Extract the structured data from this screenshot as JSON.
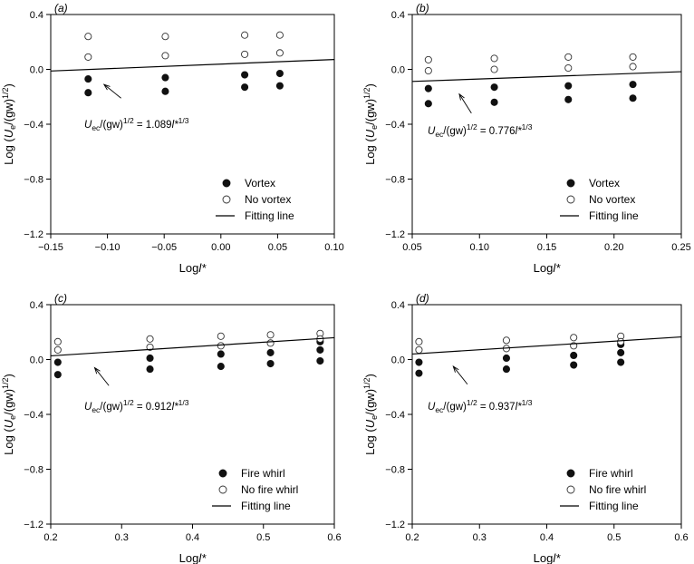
{
  "chart_data": [
    {
      "type": "scatter",
      "panel_label": "(a)",
      "xlabel": "Logl*",
      "ylabel": "Log (Ue/(gw)1/2)",
      "xlim": [
        -0.15,
        0.1
      ],
      "ylim": [
        -1.2,
        0.4
      ],
      "xticks": [
        -0.15,
        -0.1,
        -0.05,
        0.0,
        0.05,
        0.1
      ],
      "xtick_labels": [
        "−0.15",
        "−0.10",
        "−0.05",
        "0.00",
        "0.05",
        "0.10"
      ],
      "yticks": [
        -1.2,
        -0.8,
        -0.4,
        0.0,
        0.4
      ],
      "ytick_labels": [
        "−1.2",
        "−0.8",
        "−0.4",
        "0.0",
        "0.4"
      ],
      "series": [
        {
          "name": "Vortex",
          "marker": "filled-circle",
          "x": [
            -0.117,
            -0.117,
            -0.049,
            -0.049,
            0.021,
            0.021,
            0.052,
            0.052
          ],
          "y": [
            -0.07,
            -0.17,
            -0.06,
            -0.16,
            -0.04,
            -0.13,
            -0.03,
            -0.12
          ]
        },
        {
          "name": "No vortex",
          "marker": "open-circle",
          "x": [
            -0.117,
            -0.117,
            -0.049,
            -0.049,
            0.021,
            0.021,
            0.052,
            0.052
          ],
          "y": [
            0.24,
            0.09,
            0.24,
            0.1,
            0.25,
            0.11,
            0.25,
            0.12
          ]
        },
        {
          "name": "Fitting line",
          "marker": "line",
          "x": [
            -0.15,
            0.1
          ],
          "y": [
            -0.012,
            0.072
          ]
        }
      ],
      "annotation": {
        "prefix": "U",
        "sub": "ec",
        "mid": "/(gw)",
        "sup": "1/2",
        "eq": " = 1.089",
        "var": "l*",
        "exp": "1/3"
      },
      "annotation_arrow": {
        "from": [
          -0.088,
          -0.21
        ],
        "to": [
          -0.103,
          -0.11
        ]
      },
      "legend_position": "bottom-right",
      "grid": false
    },
    {
      "type": "scatter",
      "panel_label": "(b)",
      "xlabel": "Logl*",
      "ylabel": "Log (Ue/(gw)1/2)",
      "xlim": [
        0.05,
        0.25
      ],
      "ylim": [
        -1.2,
        0.4
      ],
      "xticks": [
        0.05,
        0.1,
        0.15,
        0.2,
        0.25
      ],
      "xtick_labels": [
        "0.05",
        "0.10",
        "0.15",
        "0.20",
        "0.25"
      ],
      "yticks": [
        -1.2,
        -0.8,
        -0.4,
        0.0,
        0.4
      ],
      "ytick_labels": [
        "−1.2",
        "−0.8",
        "−0.4",
        "0.0",
        "0.4"
      ],
      "series": [
        {
          "name": "Vortex",
          "marker": "filled-circle",
          "x": [
            0.062,
            0.062,
            0.111,
            0.111,
            0.166,
            0.166,
            0.214,
            0.214
          ],
          "y": [
            -0.14,
            -0.25,
            -0.13,
            -0.24,
            -0.12,
            -0.22,
            -0.11,
            -0.21
          ]
        },
        {
          "name": "No vortex",
          "marker": "open-circle",
          "x": [
            0.062,
            0.062,
            0.111,
            0.111,
            0.166,
            0.166,
            0.214,
            0.214
          ],
          "y": [
            0.07,
            -0.01,
            0.08,
            0.0,
            0.09,
            0.01,
            0.09,
            0.02
          ]
        },
        {
          "name": "Fitting line",
          "marker": "line",
          "x": [
            0.05,
            0.25
          ],
          "y": [
            -0.088,
            -0.017
          ]
        }
      ],
      "annotation": {
        "prefix": "U",
        "sub": "ec",
        "mid": "/(gw)",
        "sup": "1/2",
        "eq": " = 0.776",
        "var": "l*",
        "exp": "1/3"
      },
      "annotation_arrow": {
        "from": [
          0.094,
          -0.32
        ],
        "to": [
          0.085,
          -0.18
        ]
      },
      "legend_position": "bottom-right",
      "grid": false
    },
    {
      "type": "scatter",
      "panel_label": "(c)",
      "xlabel": "Logl*",
      "ylabel": "Log (Ue/(gw)1/2)",
      "xlim": [
        0.2,
        0.6
      ],
      "ylim": [
        -1.2,
        0.4
      ],
      "xticks": [
        0.2,
        0.3,
        0.4,
        0.5,
        0.6
      ],
      "xtick_labels": [
        "0.2",
        "0.3",
        "0.4",
        "0.5",
        "0.6"
      ],
      "yticks": [
        -1.2,
        -0.8,
        -0.4,
        0.0,
        0.4
      ],
      "ytick_labels": [
        "−1.2",
        "−0.8",
        "−0.4",
        "0.0",
        "0.4"
      ],
      "series": [
        {
          "name": "Fire whirl",
          "marker": "filled-circle",
          "x": [
            0.21,
            0.21,
            0.34,
            0.34,
            0.44,
            0.44,
            0.51,
            0.51,
            0.58,
            0.58,
            0.58
          ],
          "y": [
            -0.02,
            -0.11,
            0.01,
            -0.07,
            0.04,
            -0.05,
            0.05,
            -0.03,
            0.13,
            0.07,
            -0.01
          ]
        },
        {
          "name": "No fire whirl",
          "marker": "open-circle",
          "x": [
            0.21,
            0.21,
            0.34,
            0.34,
            0.44,
            0.44,
            0.51,
            0.51,
            0.58,
            0.58
          ],
          "y": [
            0.13,
            0.07,
            0.15,
            0.09,
            0.17,
            0.1,
            0.18,
            0.12,
            0.19,
            0.15
          ]
        },
        {
          "name": "Fitting line",
          "marker": "line",
          "x": [
            0.2,
            0.6
          ],
          "y": [
            0.027,
            0.159
          ]
        }
      ],
      "annotation": {
        "prefix": "U",
        "sub": "ec",
        "mid": "/(gw)",
        "sup": "1/2",
        "eq": " = 0.912",
        "var": "l*",
        "exp": "1/3"
      },
      "annotation_arrow": {
        "from": [
          0.282,
          -0.19
        ],
        "to": [
          0.262,
          -0.06
        ]
      },
      "legend_position": "bottom-right",
      "grid": false
    },
    {
      "type": "scatter",
      "panel_label": "(d)",
      "xlabel": "Logl*",
      "ylabel": "Log (Ue/(gw)1/2)",
      "xlim": [
        0.2,
        0.6
      ],
      "ylim": [
        -1.2,
        0.4
      ],
      "xticks": [
        0.2,
        0.3,
        0.4,
        0.5,
        0.6
      ],
      "xtick_labels": [
        "0.2",
        "0.3",
        "0.4",
        "0.5",
        "0.6"
      ],
      "yticks": [
        -1.2,
        -0.8,
        -0.4,
        0.0,
        0.4
      ],
      "ytick_labels": [
        "−1.2",
        "−0.8",
        "−0.4",
        "0.0",
        "0.4"
      ],
      "series": [
        {
          "name": "Fire whirl",
          "marker": "filled-circle",
          "x": [
            0.21,
            0.21,
            0.34,
            0.34,
            0.44,
            0.44,
            0.51,
            0.51,
            0.51
          ],
          "y": [
            -0.02,
            -0.1,
            0.01,
            -0.07,
            0.03,
            -0.04,
            0.11,
            0.05,
            -0.02
          ]
        },
        {
          "name": "No fire whirl",
          "marker": "open-circle",
          "x": [
            0.21,
            0.21,
            0.34,
            0.34,
            0.44,
            0.44,
            0.51,
            0.51
          ],
          "y": [
            0.13,
            0.07,
            0.14,
            0.08,
            0.16,
            0.1,
            0.17,
            0.13
          ]
        },
        {
          "name": "Fitting line",
          "marker": "line",
          "x": [
            0.2,
            0.6
          ],
          "y": [
            0.04,
            0.165
          ]
        }
      ],
      "annotation": {
        "prefix": "U",
        "sub": "ec",
        "mid": "/(gw)",
        "sup": "1/2",
        "eq": " = 0.937",
        "var": "l*",
        "exp": "1/3"
      },
      "annotation_arrow": {
        "from": [
          0.282,
          -0.18
        ],
        "to": [
          0.261,
          -0.05
        ]
      },
      "legend_position": "bottom-right",
      "grid": false
    }
  ]
}
